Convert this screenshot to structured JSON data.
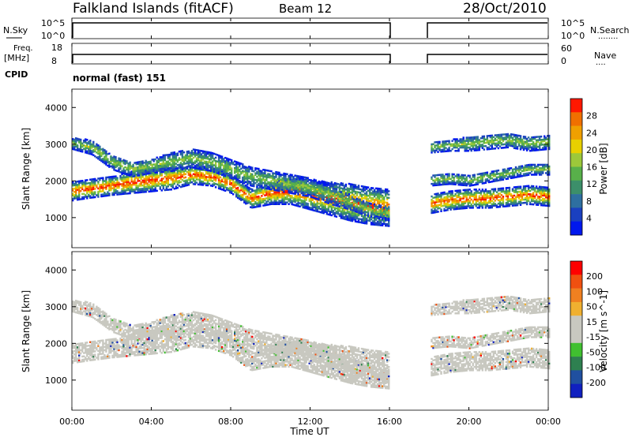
{
  "header": {
    "station": "Falkland Islands (fitACF)",
    "beam": "Beam 12",
    "date": "28/Oct/2010"
  },
  "strips": {
    "nsky_label": "N.Sky",
    "nsearch_label": "N.Search",
    "freq_label_1": "Freq.",
    "freq_label_2": "[MHz]",
    "nave_label": "Nave",
    "cpid_label": "CPID",
    "cpid_value": "normal (fast) 151",
    "noise_ticks_left": [
      "10^5",
      "10^0"
    ],
    "noise_ticks_right": [
      "10^5",
      "10^0"
    ],
    "freq_ticks": [
      "18",
      "8"
    ],
    "nave_ticks": [
      "60",
      "0"
    ]
  },
  "colors": {
    "power_scale": [
      "#0018ee",
      "#1a40c0",
      "#2e6fa0",
      "#3c8f6a",
      "#58b04a",
      "#9cc83a",
      "#e8d000",
      "#f0a000",
      "#f07000",
      "#ff1800"
    ],
    "velocity_scale": [
      "#1020c0",
      "#2050a0",
      "#2e8050",
      "#40c030",
      "#c8c8c0",
      "#c8c8c0",
      "#f0b030",
      "#f08020",
      "#f05010",
      "#ff0000"
    ],
    "velocity_gray": "#c6c6be"
  },
  "chart_data": [
    {
      "type": "heatmap",
      "name": "power",
      "ylabel": "Slant Range [km]",
      "xlabel": "",
      "x_ticks": [
        "00:00",
        "04:00",
        "08:00",
        "12:00",
        "16:00",
        "20:00",
        "00:00"
      ],
      "x_range_hours": [
        0,
        24
      ],
      "ylim": [
        180,
        4500
      ],
      "y_ticks": [
        1000,
        2000,
        3000,
        4000
      ],
      "colorbar": {
        "label": "Power [dB]",
        "range": [
          0,
          30
        ],
        "ticks": [
          "28",
          "24",
          "20",
          "16",
          "12",
          "8",
          "4"
        ]
      },
      "data_gap_hours": [
        16.0,
        18.0
      ],
      "bands": [
        {
          "name": "main",
          "hours": [
            0,
            1,
            2,
            3,
            4,
            5,
            6,
            7,
            8,
            9,
            10,
            11,
            12,
            13,
            14,
            15,
            16
          ],
          "center_km": [
            1700,
            1780,
            1850,
            1950,
            2000,
            2050,
            2150,
            2100,
            1900,
            1500,
            1650,
            1700,
            1600,
            1500,
            1400,
            1300,
            1250
          ],
          "width_km": [
            500,
            500,
            500,
            600,
            600,
            600,
            500,
            500,
            500,
            500,
            600,
            700,
            800,
            900,
            1000,
            1000,
            1000
          ]
        },
        {
          "name": "upper",
          "hours": [
            0,
            1,
            2,
            3,
            4,
            5,
            6,
            7,
            8,
            9,
            10,
            11,
            12,
            13,
            14,
            15,
            16
          ],
          "center_km": [
            3000,
            2900,
            2500,
            2300,
            2400,
            2500,
            2600,
            2500,
            2300,
            2100,
            2000,
            1900,
            1800,
            1600,
            1400,
            1200,
            1100
          ],
          "width_km": [
            300,
            400,
            400,
            400,
            400,
            500,
            500,
            500,
            500,
            500,
            500,
            500,
            500,
            500,
            400,
            400,
            400
          ]
        },
        {
          "name": "evening-main",
          "hours": [
            18,
            19,
            20,
            21,
            22,
            23,
            24
          ],
          "center_km": [
            1350,
            1450,
            1500,
            1500,
            1550,
            1600,
            1550
          ],
          "width_km": [
            500,
            500,
            500,
            500,
            500,
            500,
            500
          ]
        },
        {
          "name": "evening-upper",
          "hours": [
            18,
            19,
            20,
            21,
            22,
            23,
            24
          ],
          "center_km": [
            2000,
            2050,
            2000,
            2100,
            2200,
            2300,
            2300
          ],
          "width_km": [
            300,
            300,
            300,
            300,
            300,
            300,
            300
          ]
        },
        {
          "name": "evening-high",
          "hours": [
            18,
            19,
            20,
            21,
            22,
            23,
            24
          ],
          "center_km": [
            2900,
            2950,
            3000,
            3050,
            3100,
            3000,
            3050
          ],
          "width_km": [
            300,
            300,
            400,
            400,
            400,
            400,
            400
          ]
        }
      ]
    },
    {
      "type": "heatmap",
      "name": "velocity",
      "ylabel": "Slant Range [km]",
      "xlabel": "Time UT",
      "x_ticks": [
        "00:00",
        "04:00",
        "08:00",
        "12:00",
        "16:00",
        "20:00",
        "00:00"
      ],
      "x_range_hours": [
        0,
        24
      ],
      "ylim": [
        180,
        4500
      ],
      "y_ticks": [
        1000,
        2000,
        3000,
        4000
      ],
      "colorbar": {
        "label": "Velocity [m s^-1]",
        "ticks": [
          "200",
          "100",
          "50",
          "15",
          "-15",
          "-50",
          "-100",
          "-200"
        ]
      },
      "data_gap_hours": [
        16.0,
        18.0
      ]
    }
  ]
}
